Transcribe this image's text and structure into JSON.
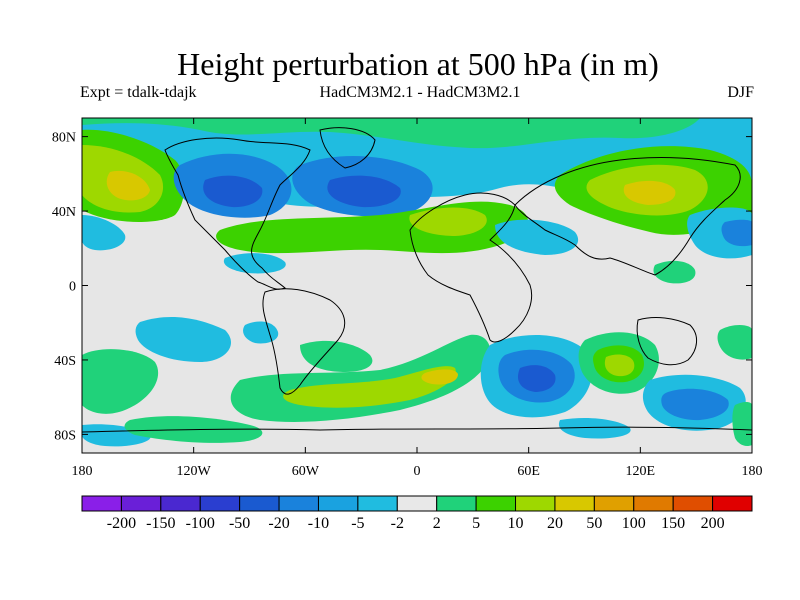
{
  "chart_data": {
    "type": "heatmap",
    "title": "Height perturbation at 500 hPa (in m)",
    "experiment": "Expt = tdalk-tdajk",
    "models": "HadCM3M2.1 - HadCM3M2.1",
    "season": "DJF",
    "xlim": [
      -180,
      180
    ],
    "ylim": [
      -90,
      90
    ],
    "x_ticks": [
      {
        "value": -180,
        "label": "180"
      },
      {
        "value": -120,
        "label": "120W"
      },
      {
        "value": -60,
        "label": "60W"
      },
      {
        "value": 0,
        "label": "0"
      },
      {
        "value": 60,
        "label": "60E"
      },
      {
        "value": 120,
        "label": "120E"
      },
      {
        "value": 180,
        "label": "180"
      }
    ],
    "y_ticks": [
      {
        "value": 80,
        "label": "80N"
      },
      {
        "value": 40,
        "label": "40N"
      },
      {
        "value": 0,
        "label": "0"
      },
      {
        "value": -40,
        "label": "40S"
      },
      {
        "value": -80,
        "label": "80S"
      }
    ],
    "colorbar": {
      "labels": [
        "-200",
        "-150",
        "-100",
        "-50",
        "-20",
        "-10",
        "-5",
        "-2",
        "2",
        "5",
        "10",
        "20",
        "50",
        "100",
        "150",
        "200"
      ],
      "colors": [
        "#8a1fe8",
        "#6a1fd8",
        "#4a28d0",
        "#2a3ed0",
        "#1a5ad0",
        "#1a82dc",
        "#1aa2e0",
        "#20bce0",
        "#e8e8e8",
        "#20d27a",
        "#3cd200",
        "#9ed800",
        "#d8c800",
        "#e0a000",
        "#e07a00",
        "#e04e00",
        "#e00000"
      ]
    },
    "anomalies": [
      {
        "name": "north-america-low",
        "lon": -92,
        "lat": 47,
        "value": -20
      },
      {
        "name": "north-pacific-low",
        "lon": -25,
        "lat": 53,
        "value": -20
      },
      {
        "name": "east-pacific-high",
        "lon": -155,
        "lat": 50,
        "value": 20
      },
      {
        "name": "asia-high",
        "lon": 115,
        "lat": 50,
        "value": 20
      },
      {
        "name": "south-indian-low",
        "lon": 75,
        "lat": -45,
        "value": -20
      },
      {
        "name": "australia-high",
        "lon": 110,
        "lat": -45,
        "value": 20
      }
    ]
  }
}
